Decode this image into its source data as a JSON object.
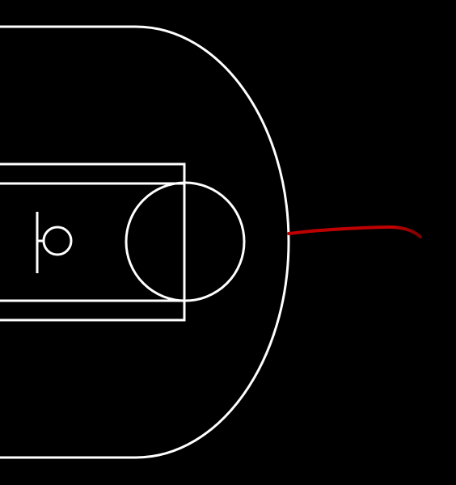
{
  "scene": {
    "background_color": "#000000",
    "line_color": "#ffffff",
    "stroke_color": "#c00000",
    "stroke_dark_color": "#7a0000"
  },
  "icons": {
    "court": "basketball-half-court",
    "hoop": "hoop-icon",
    "backboard": "backboard-icon",
    "trail": "shot-trail"
  }
}
